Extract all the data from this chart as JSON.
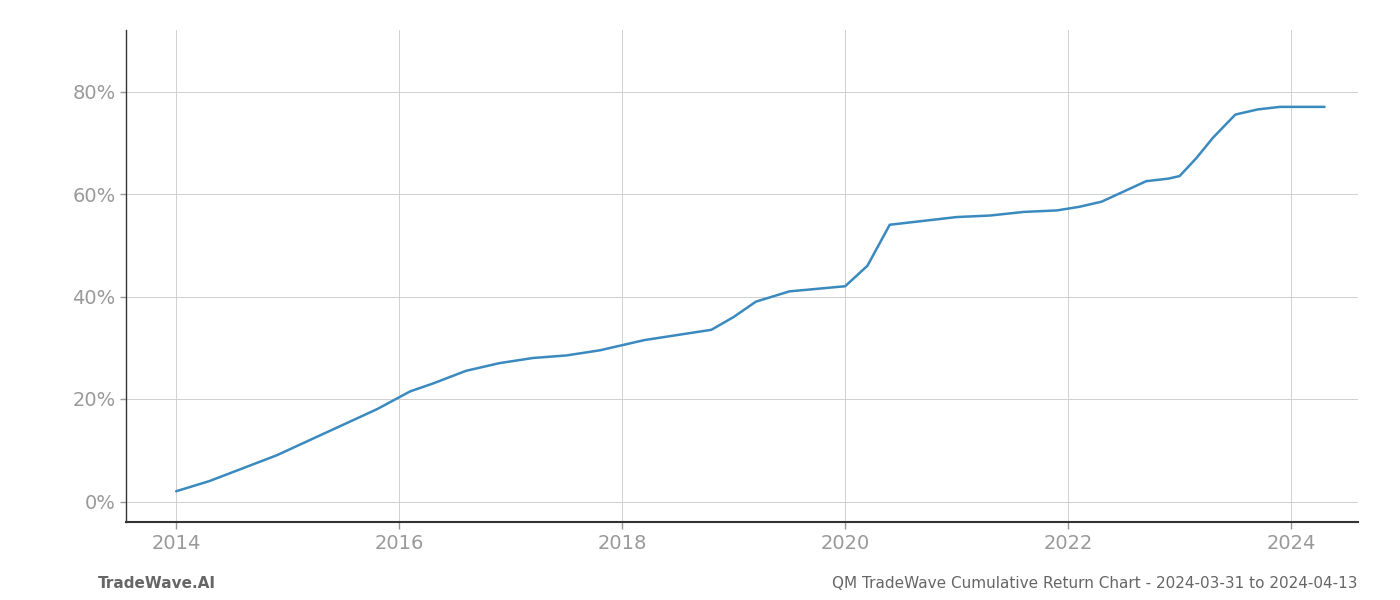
{
  "x_values": [
    2014.0,
    2014.3,
    2014.6,
    2014.9,
    2015.2,
    2015.5,
    2015.8,
    2016.1,
    2016.3,
    2016.6,
    2016.9,
    2017.2,
    2017.5,
    2017.8,
    2018.0,
    2018.2,
    2018.5,
    2018.8,
    2019.0,
    2019.2,
    2019.5,
    2019.75,
    2020.0,
    2020.2,
    2020.4,
    2020.6,
    2020.8,
    2021.0,
    2021.3,
    2021.6,
    2021.9,
    2022.1,
    2022.3,
    2022.5,
    2022.7,
    2022.9,
    2023.0,
    2023.15,
    2023.3,
    2023.5,
    2023.7,
    2023.9,
    2024.1,
    2024.3
  ],
  "y_values": [
    2.0,
    4.0,
    6.5,
    9.0,
    12.0,
    15.0,
    18.0,
    21.5,
    23.0,
    25.5,
    27.0,
    28.0,
    28.5,
    29.5,
    30.5,
    31.5,
    32.5,
    33.5,
    36.0,
    39.0,
    41.0,
    41.5,
    42.0,
    46.0,
    54.0,
    54.5,
    55.0,
    55.5,
    55.8,
    56.5,
    56.8,
    57.5,
    58.5,
    60.5,
    62.5,
    63.0,
    63.5,
    67.0,
    71.0,
    75.5,
    76.5,
    77.0,
    77.0,
    77.0
  ],
  "line_color": "#3a8abf",
  "line_width": 1.8,
  "background_color": "#ffffff",
  "grid_color": "#d0d0d0",
  "x_tick_labels": [
    "2014",
    "2016",
    "2018",
    "2020",
    "2022",
    "2024"
  ],
  "x_ticks": [
    2014,
    2016,
    2018,
    2020,
    2022,
    2024
  ],
  "y_ticks": [
    0,
    20,
    40,
    60,
    80
  ],
  "y_tick_labels": [
    "0%",
    "20%",
    "40%",
    "60%",
    "80%"
  ],
  "ylim": [
    -4,
    92
  ],
  "xlim": [
    2013.55,
    2024.6
  ],
  "footer_left": "TradeWave.AI",
  "footer_right": "QM TradeWave Cumulative Return Chart - 2024-03-31 to 2024-04-13",
  "tick_color": "#999999",
  "axis_label_color": "#999999",
  "footer_color": "#666666",
  "footer_fontsize": 11,
  "ytick_fontsize": 14,
  "xtick_fontsize": 14
}
